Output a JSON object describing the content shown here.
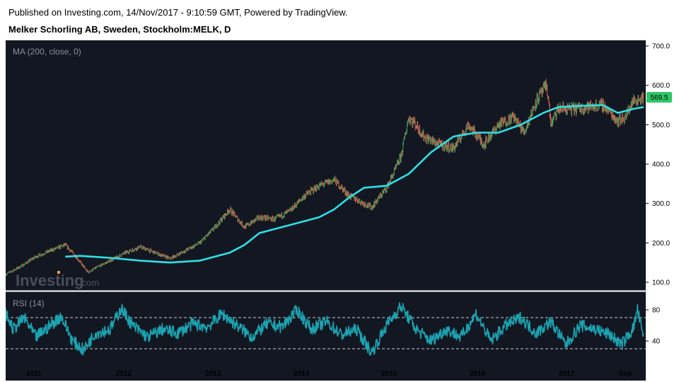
{
  "header": {
    "published": "Published on Investing.com, 14/Nov/2017 - 9:10:59 GMT, Powered by TradingView.",
    "instrument": "Melker Schorling AB, Sweden, Stockholm:MELK, D"
  },
  "watermark": {
    "brand": "Investing",
    "suffix": ".com"
  },
  "colors": {
    "background": "#131722",
    "ma_line": "#2ee0e6",
    "rsi_line": "#1ba3b0",
    "candle_up": "#3aa05a",
    "candle_down": "#e4574d",
    "price_tag": "#2ec866"
  },
  "chart_data": [
    {
      "type": "line",
      "panel": "price",
      "label": "MA (200, close, 0)",
      "last_price": "569.5",
      "ylim": [
        100,
        700
      ],
      "y_ticks": [
        "700.0",
        "600.0",
        "500.0",
        "400.0",
        "300.0",
        "200.0",
        "100.0"
      ],
      "x_ticks": [
        "2011",
        "2012",
        "2013",
        "2014",
        "2015",
        "2016",
        "2017",
        "Sep"
      ],
      "grid": false,
      "series": [
        {
          "kind": "close",
          "x": [
            "2010-10-01",
            "2010-12-01",
            "2011-02-01",
            "2011-04-01",
            "2011-06-01",
            "2011-07-15",
            "2011-09-01",
            "2011-10-15",
            "2011-12-01",
            "2012-02-01",
            "2012-04-01",
            "2012-06-01",
            "2012-08-01",
            "2012-10-01",
            "2012-12-01",
            "2013-02-01",
            "2013-04-01",
            "2013-06-01",
            "2013-08-01",
            "2013-10-01",
            "2013-12-01",
            "2014-02-01",
            "2014-04-01",
            "2014-06-01",
            "2014-08-01",
            "2014-10-01",
            "2014-11-01",
            "2015-01-01",
            "2015-02-01",
            "2015-03-01",
            "2015-04-01",
            "2015-05-01",
            "2015-06-01",
            "2015-08-01",
            "2015-10-01",
            "2015-12-01",
            "2016-02-01",
            "2016-04-01",
            "2016-06-01",
            "2016-07-15",
            "2016-09-01",
            "2016-10-15",
            "2016-11-01",
            "2016-12-01",
            "2017-02-01",
            "2017-04-01",
            "2017-06-01",
            "2017-08-01",
            "2017-09-01",
            "2017-10-01",
            "2017-11-14"
          ],
          "values": [
            120,
            140,
            165,
            180,
            195,
            165,
            125,
            140,
            155,
            175,
            190,
            175,
            160,
            180,
            200,
            240,
            285,
            240,
            265,
            260,
            280,
            320,
            345,
            360,
            320,
            300,
            290,
            340,
            380,
            420,
            520,
            500,
            470,
            450,
            440,
            500,
            450,
            500,
            520,
            480,
            560,
            600,
            500,
            540,
            540,
            545,
            550,
            510,
            520,
            560,
            569.5
          ]
        },
        {
          "kind": "ma",
          "x": [
            "2011-06-01",
            "2011-08-01",
            "2011-12-01",
            "2012-04-01",
            "2012-08-01",
            "2012-12-01",
            "2013-04-01",
            "2013-06-01",
            "2013-08-01",
            "2013-12-01",
            "2014-04-01",
            "2014-06-01",
            "2014-08-01",
            "2014-10-01",
            "2015-01-01",
            "2015-04-01",
            "2015-07-01",
            "2015-10-01",
            "2016-01-01",
            "2016-04-01",
            "2016-07-01",
            "2016-10-01",
            "2016-12-01",
            "2017-03-01",
            "2017-06-01",
            "2017-08-01",
            "2017-10-01",
            "2017-11-14"
          ],
          "values": [
            165,
            167,
            162,
            155,
            150,
            155,
            175,
            195,
            225,
            245,
            265,
            285,
            315,
            340,
            345,
            375,
            430,
            470,
            480,
            480,
            500,
            530,
            545,
            548,
            550,
            530,
            540,
            545
          ]
        }
      ]
    },
    {
      "type": "line",
      "panel": "indicator",
      "label": "RSI (14)",
      "ylim": [
        0,
        100
      ],
      "y_ticks": [
        "80",
        "40"
      ],
      "reference_lines": [
        70,
        30
      ],
      "series": [
        {
          "kind": "rsi",
          "x": [
            "2010-10-01",
            "2010-11-01",
            "2010-12-15",
            "2011-02-01",
            "2011-04-01",
            "2011-05-15",
            "2011-07-01",
            "2011-08-15",
            "2011-10-01",
            "2011-12-01",
            "2012-01-15",
            "2012-03-01",
            "2012-05-01",
            "2012-07-01",
            "2012-09-01",
            "2012-11-01",
            "2013-01-01",
            "2013-03-01",
            "2013-05-01",
            "2013-07-01",
            "2013-09-01",
            "2013-11-01",
            "2014-01-01",
            "2014-03-01",
            "2014-05-01",
            "2014-07-01",
            "2014-09-01",
            "2014-11-01",
            "2015-01-01",
            "2015-03-01",
            "2015-05-01",
            "2015-07-01",
            "2015-09-01",
            "2015-11-01",
            "2016-01-01",
            "2016-03-01",
            "2016-05-01",
            "2016-07-01",
            "2016-09-01",
            "2016-11-01",
            "2017-01-01",
            "2017-03-01",
            "2017-05-01",
            "2017-07-01",
            "2017-08-15",
            "2017-10-01",
            "2017-10-20",
            "2017-11-14"
          ],
          "values": [
            75,
            55,
            70,
            45,
            60,
            72,
            40,
            28,
            50,
            55,
            82,
            60,
            45,
            55,
            50,
            62,
            58,
            75,
            60,
            45,
            62,
            58,
            80,
            55,
            65,
            48,
            55,
            25,
            60,
            85,
            55,
            40,
            55,
            45,
            75,
            40,
            60,
            70,
            50,
            65,
            35,
            60,
            55,
            48,
            35,
            55,
            80,
            42
          ]
        }
      ]
    }
  ]
}
